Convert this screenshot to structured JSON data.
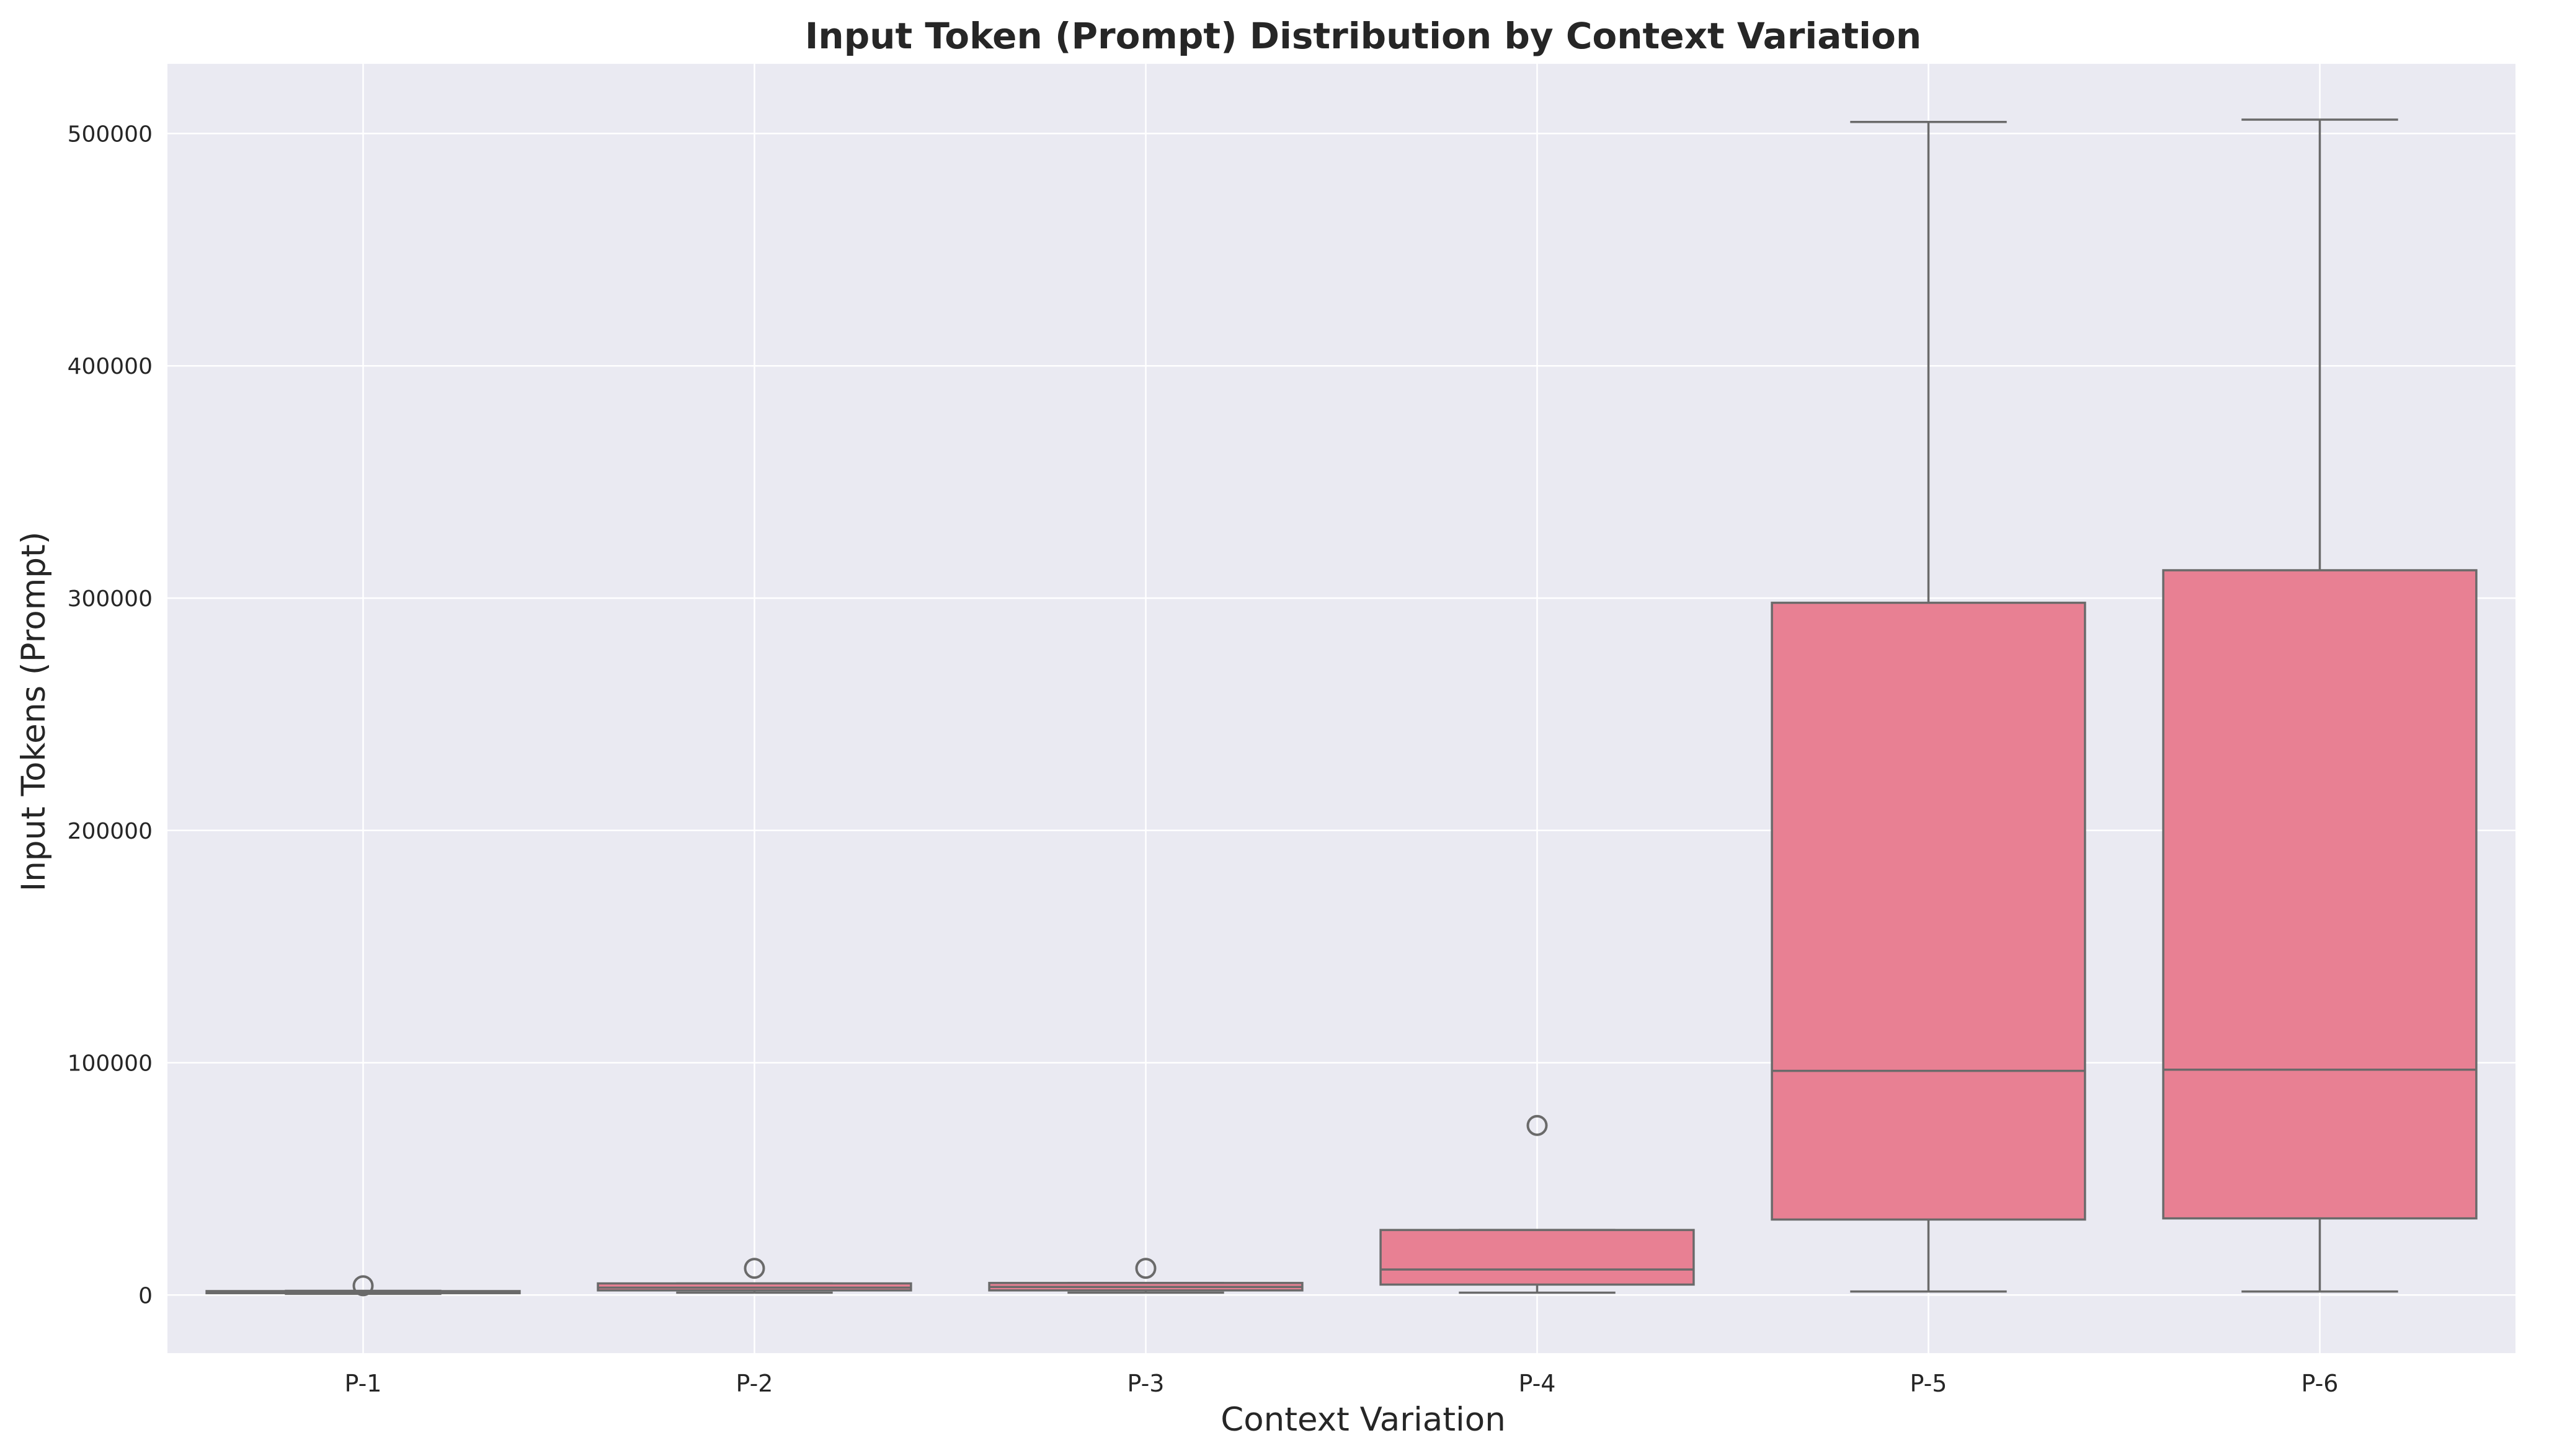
{
  "chart_data": {
    "type": "box",
    "title": "Input Token (Prompt) Distribution by Context Variation",
    "xlabel": "Context Variation",
    "ylabel": "Input Tokens (Prompt)",
    "ylim": [
      -25000,
      530000
    ],
    "yticks": [
      "0",
      "100000",
      "200000",
      "300000",
      "400000",
      "500000"
    ],
    "categories": [
      "P-1",
      "P-2",
      "P-3",
      "P-4",
      "P-5",
      "P-6"
    ],
    "boxes": [
      {
        "label": "P-1",
        "whisker_low": 500,
        "q1": 800,
        "median": 1200,
        "q3": 1700,
        "whisker_high": 1800,
        "outliers": [
          4000
        ]
      },
      {
        "label": "P-2",
        "whisker_low": 1000,
        "q1": 2000,
        "median": 3200,
        "q3": 5000,
        "whisker_high": 5000,
        "outliers": [
          11500
        ]
      },
      {
        "label": "P-3",
        "whisker_low": 1000,
        "q1": 2000,
        "median": 3500,
        "q3": 5200,
        "whisker_high": 5200,
        "outliers": [
          11500
        ]
      },
      {
        "label": "P-4",
        "whisker_low": 1000,
        "q1": 4500,
        "median": 11000,
        "q3": 28000,
        "whisker_high": 28000,
        "outliers": [
          73000
        ]
      },
      {
        "label": "P-5",
        "whisker_low": 1500,
        "q1": 32500,
        "median": 96500,
        "q3": 298000,
        "whisker_high": 505000,
        "outliers": []
      },
      {
        "label": "P-6",
        "whisker_low": 1500,
        "q1": 33000,
        "median": 97000,
        "q3": 312000,
        "whisker_high": 506000,
        "outliers": []
      }
    ],
    "grid": true,
    "colors": {
      "box_fill": "#e88093",
      "box_edge": "#6a6a6a",
      "plot_bg": "#eaeaf2",
      "grid": "#ffffff"
    }
  }
}
